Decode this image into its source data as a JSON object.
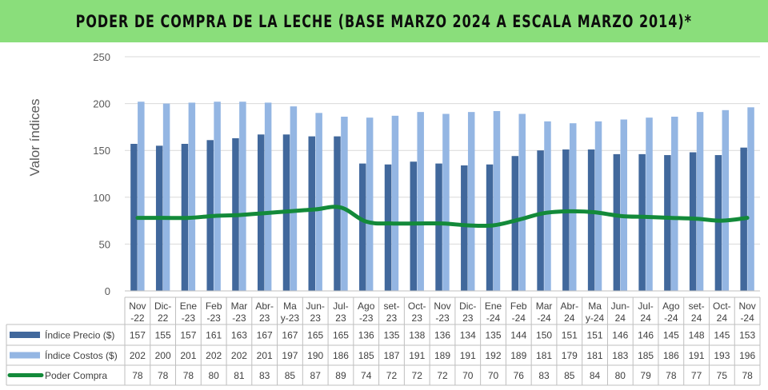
{
  "title": "PODER DE COMPRA DE LA LECHE (BASE MARZO 2024 A ESCALA MARZO 2014)*",
  "colors": {
    "title_bg": "#8ade7b",
    "precio": "#41689c",
    "costos": "#94b6e3",
    "poder": "#138a3a",
    "grid": "#d9d9d9",
    "text": "#404040"
  },
  "chart_data": {
    "type": "bar",
    "title": "PODER DE COMPRA DE LA LECHE (BASE MARZO 2024 A ESCALA MARZO 2014)*",
    "ylabel": "Valor índices",
    "xlabel": "",
    "ylim": [
      0,
      250
    ],
    "yticks": [
      0,
      50,
      100,
      150,
      200,
      250
    ],
    "grid": true,
    "legend": "data-table",
    "categories": [
      [
        "Nov",
        "-22"
      ],
      [
        "Dic-",
        "22"
      ],
      [
        "Ene",
        "-23"
      ],
      [
        "Feb",
        "-23"
      ],
      [
        "Mar",
        "-23"
      ],
      [
        "Abr-",
        "23"
      ],
      [
        "Ma",
        "y-23"
      ],
      [
        "Jun-",
        "23"
      ],
      [
        "Jul-",
        "23"
      ],
      [
        "Ago",
        "-23"
      ],
      [
        "set-",
        "23"
      ],
      [
        "Oct-",
        "23"
      ],
      [
        "Nov",
        "-23"
      ],
      [
        "Dic-",
        "23"
      ],
      [
        "Ene",
        "-24"
      ],
      [
        "Feb",
        "-24"
      ],
      [
        "Mar",
        "-24"
      ],
      [
        "Abr-",
        "24"
      ],
      [
        "Ma",
        "y-24"
      ],
      [
        "Jun-",
        "24"
      ],
      [
        "Jul-",
        "24"
      ],
      [
        "Ago",
        "-24"
      ],
      [
        "set-",
        "24"
      ],
      [
        "Oct-",
        "24"
      ],
      [
        "Nov",
        "-24"
      ]
    ],
    "series": [
      {
        "name": "Índice Precio ($)",
        "type": "bar",
        "values": [
          157,
          155,
          157,
          161,
          163,
          167,
          167,
          165,
          165,
          136,
          135,
          138,
          136,
          134,
          135,
          144,
          150,
          151,
          151,
          146,
          146,
          145,
          148,
          145,
          153
        ]
      },
      {
        "name": "Índice Costos ($)",
        "type": "bar",
        "values": [
          202,
          200,
          201,
          202,
          202,
          201,
          197,
          190,
          186,
          185,
          187,
          191,
          189,
          191,
          192,
          189,
          181,
          179,
          181,
          183,
          185,
          186,
          191,
          193,
          196
        ]
      },
      {
        "name": "Poder Compra",
        "type": "line",
        "values": [
          78,
          78,
          78,
          80,
          81,
          83,
          85,
          87,
          89,
          74,
          72,
          72,
          72,
          70,
          70,
          76,
          83,
          85,
          84,
          80,
          79,
          78,
          77,
          75,
          78
        ]
      }
    ]
  }
}
